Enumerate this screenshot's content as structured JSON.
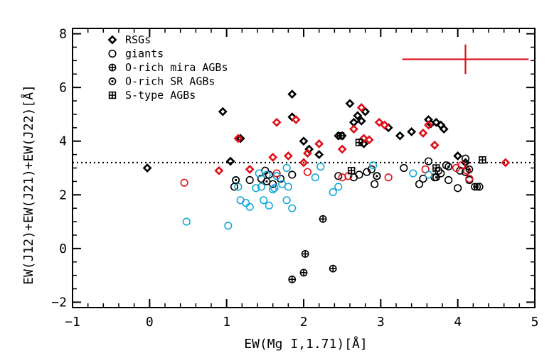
{
  "chart_data": {
    "type": "scatter",
    "title": "",
    "xlabel": "EW(Mg I,1.71)[Å]",
    "ylabel": "EW(J12)+EW(J21)+EW(J22)[Å]",
    "xlim": [
      -1,
      5
    ],
    "ylim": [
      -2.2,
      8.2
    ],
    "x_ticks": [
      -1,
      0,
      1,
      2,
      3,
      4,
      5
    ],
    "x_tick_labels": [
      "−1",
      "0",
      "1",
      "2",
      "3",
      "4",
      "5"
    ],
    "y_ticks": [
      -2,
      0,
      2,
      4,
      6,
      8
    ],
    "y_tick_labels": [
      "−2",
      "0",
      "2",
      "4",
      "6",
      "8"
    ],
    "grid": false,
    "legend_position": "top-left",
    "threshold_line": {
      "y": 3.2,
      "style": "dotted"
    },
    "error_bar": {
      "x": 4.1,
      "y": 7.05,
      "x_err": 0.82,
      "y_err": 0.55,
      "color": "#e0101a"
    },
    "colors": {
      "black": "#000000",
      "red": "#e0101a",
      "cyan": "#18a8d8"
    },
    "legend": [
      {
        "marker": "diamond",
        "label": "RSGs"
      },
      {
        "marker": "circle",
        "label": "giants"
      },
      {
        "marker": "circle-plus",
        "label": "O-rich mira AGBs"
      },
      {
        "marker": "circle-dot",
        "label": "O-rich SR AGBs"
      },
      {
        "marker": "square-plus",
        "label": "S-type AGBs"
      }
    ],
    "series": [
      {
        "marker": "diamond",
        "color": "black",
        "points": [
          [
            -0.03,
            3.0
          ],
          [
            0.95,
            5.1
          ],
          [
            1.05,
            3.25
          ],
          [
            1.18,
            4.1
          ],
          [
            1.85,
            5.75
          ],
          [
            1.85,
            4.9
          ],
          [
            2.0,
            4.0
          ],
          [
            2.07,
            3.7
          ],
          [
            2.2,
            3.5
          ],
          [
            2.45,
            4.2
          ],
          [
            2.5,
            4.2
          ],
          [
            2.6,
            5.4
          ],
          [
            2.65,
            4.7
          ],
          [
            2.7,
            4.95
          ],
          [
            2.75,
            4.75
          ],
          [
            2.8,
            5.1
          ],
          [
            2.78,
            3.9
          ],
          [
            3.1,
            4.5
          ],
          [
            3.25,
            4.2
          ],
          [
            3.4,
            4.35
          ],
          [
            3.62,
            4.8
          ],
          [
            3.65,
            4.65
          ],
          [
            3.72,
            4.7
          ],
          [
            3.78,
            4.6
          ],
          [
            3.82,
            4.45
          ],
          [
            4.0,
            3.45
          ],
          [
            4.1,
            3.2
          ]
        ]
      },
      {
        "marker": "diamond",
        "color": "red",
        "points": [
          [
            0.9,
            2.9
          ],
          [
            1.15,
            4.1
          ],
          [
            1.3,
            2.95
          ],
          [
            1.6,
            3.4
          ],
          [
            1.65,
            4.7
          ],
          [
            1.9,
            4.8
          ],
          [
            1.8,
            3.45
          ],
          [
            2.0,
            3.2
          ],
          [
            2.05,
            3.55
          ],
          [
            2.2,
            3.9
          ],
          [
            2.5,
            3.7
          ],
          [
            2.65,
            4.45
          ],
          [
            2.75,
            5.25
          ],
          [
            2.78,
            4.1
          ],
          [
            2.85,
            4.05
          ],
          [
            2.98,
            4.7
          ],
          [
            3.05,
            4.6
          ],
          [
            3.55,
            4.3
          ],
          [
            3.62,
            4.6
          ],
          [
            3.7,
            3.85
          ],
          [
            4.62,
            3.2
          ]
        ]
      },
      {
        "marker": "circle",
        "color": "black",
        "points": [
          [
            1.1,
            2.3
          ],
          [
            1.3,
            2.55
          ],
          [
            1.45,
            2.6
          ],
          [
            1.5,
            2.9
          ],
          [
            1.55,
            2.75
          ],
          [
            1.6,
            2.4
          ],
          [
            1.7,
            2.6
          ],
          [
            1.85,
            2.75
          ],
          [
            2.45,
            2.7
          ],
          [
            2.65,
            2.65
          ],
          [
            2.72,
            2.75
          ],
          [
            2.82,
            2.85
          ],
          [
            2.88,
            2.95
          ],
          [
            2.92,
            2.4
          ],
          [
            2.95,
            2.7
          ],
          [
            3.3,
            3.0
          ],
          [
            3.5,
            2.4
          ],
          [
            3.55,
            2.6
          ],
          [
            3.62,
            3.25
          ],
          [
            3.7,
            2.65
          ],
          [
            3.75,
            2.9
          ],
          [
            3.78,
            2.8
          ],
          [
            3.85,
            3.1
          ],
          [
            3.88,
            2.55
          ],
          [
            4.03,
            2.9
          ],
          [
            4.0,
            2.25
          ],
          [
            4.1,
            3.35
          ],
          [
            4.1,
            2.85
          ],
          [
            4.15,
            2.55
          ],
          [
            4.28,
            2.3
          ]
        ]
      },
      {
        "marker": "circle",
        "color": "red",
        "points": [
          [
            0.45,
            2.45
          ],
          [
            1.65,
            2.8
          ],
          [
            2.05,
            2.85
          ],
          [
            2.5,
            2.65
          ],
          [
            2.58,
            2.7
          ],
          [
            3.1,
            2.65
          ],
          [
            3.58,
            2.95
          ],
          [
            3.98,
            3.0
          ],
          [
            4.05,
            3.1
          ],
          [
            4.12,
            2.9
          ],
          [
            4.15,
            2.6
          ]
        ]
      },
      {
        "marker": "circle",
        "color": "cyan",
        "points": [
          [
            0.48,
            1.0
          ],
          [
            1.02,
            0.85
          ],
          [
            1.12,
            2.55
          ],
          [
            1.15,
            2.3
          ],
          [
            1.18,
            1.8
          ],
          [
            1.25,
            1.7
          ],
          [
            1.3,
            1.55
          ],
          [
            1.38,
            2.25
          ],
          [
            1.42,
            2.8
          ],
          [
            1.45,
            2.3
          ],
          [
            1.48,
            1.8
          ],
          [
            1.52,
            2.75
          ],
          [
            1.55,
            1.6
          ],
          [
            1.6,
            2.2
          ],
          [
            1.62,
            2.25
          ],
          [
            1.65,
            2.7
          ],
          [
            1.72,
            2.4
          ],
          [
            1.78,
            3.0
          ],
          [
            1.8,
            2.3
          ],
          [
            1.78,
            1.8
          ],
          [
            1.85,
            1.5
          ],
          [
            2.15,
            2.65
          ],
          [
            2.22,
            3.05
          ],
          [
            2.38,
            2.1
          ],
          [
            2.45,
            2.3
          ],
          [
            2.9,
            3.1
          ],
          [
            3.42,
            2.8
          ],
          [
            3.62,
            2.75
          ]
        ]
      },
      {
        "marker": "circle-plus",
        "color": "black",
        "points": [
          [
            2.25,
            1.1
          ],
          [
            2.02,
            -0.2
          ],
          [
            1.85,
            -1.15
          ],
          [
            2.0,
            -0.9
          ],
          [
            2.38,
            -0.75
          ]
        ]
      },
      {
        "marker": "circle-dot",
        "color": "black",
        "points": [
          [
            1.12,
            2.55
          ],
          [
            1.52,
            2.5
          ],
          [
            2.95,
            2.7
          ],
          [
            3.72,
            2.65
          ],
          [
            3.88,
            3.05
          ],
          [
            4.15,
            2.95
          ],
          [
            4.22,
            2.3
          ],
          [
            4.25,
            2.3
          ]
        ]
      },
      {
        "marker": "square-plus",
        "color": "black",
        "points": [
          [
            2.48,
            4.2
          ],
          [
            2.62,
            2.9
          ],
          [
            2.72,
            3.95
          ],
          [
            3.72,
            3.0
          ],
          [
            4.32,
            3.3
          ]
        ]
      }
    ]
  }
}
